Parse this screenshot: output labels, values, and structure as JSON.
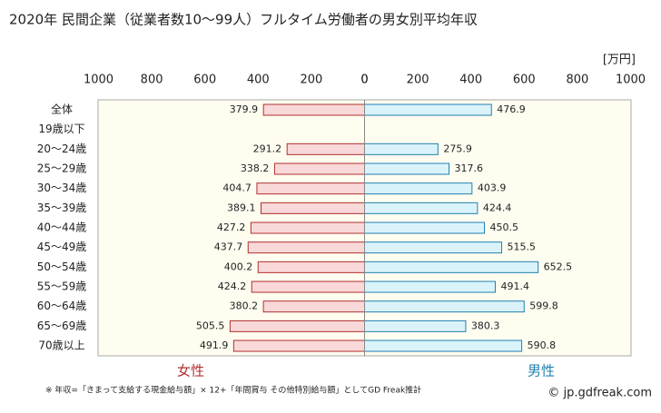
{
  "chart_data": {
    "type": "butterfly-bar",
    "title": "2020年 民間企業（従業者数10～99人）フルタイム労働者の男女別平均年収",
    "unit": "[万円]",
    "categories": [
      "全体",
      "19歳以下",
      "20～24歳",
      "25～29歳",
      "30～34歳",
      "35～39歳",
      "40～44歳",
      "45～49歳",
      "50～54歳",
      "55～59歳",
      "60～64歳",
      "65～69歳",
      "70歳以上"
    ],
    "series": [
      {
        "name": "女性",
        "color": "#f8d8d8",
        "edgecolor": "#b03030",
        "side": "left",
        "values": [
          379.9,
          null,
          291.2,
          338.2,
          404.7,
          389.1,
          427.2,
          437.7,
          400.2,
          424.2,
          380.2,
          505.5,
          491.9
        ]
      },
      {
        "name": "男性",
        "color": "#daf3fb",
        "edgecolor": "#2080b0",
        "side": "right",
        "values": [
          476.9,
          null,
          275.9,
          317.6,
          403.9,
          424.4,
          450.5,
          515.5,
          652.5,
          491.4,
          599.8,
          380.3,
          590.8
        ]
      }
    ],
    "xlim": [
      0,
      1000
    ],
    "xticks_left": [
      1000,
      800,
      600,
      400,
      200,
      0
    ],
    "xticks_right": [
      0,
      200,
      400,
      600,
      800,
      1000
    ],
    "footnote": "※ 年収=「きまって支給する現金給与額」× 12+「年間賞与 その他特別給与額」としてGD Freak推計",
    "source": "© jp.gdfreak.com"
  }
}
